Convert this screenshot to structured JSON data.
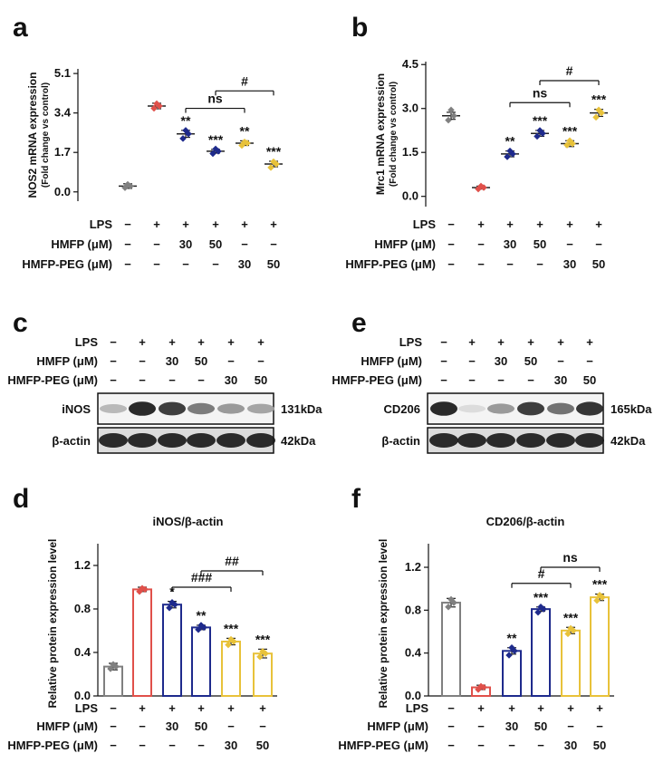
{
  "panels": {
    "a": "a",
    "b": "b",
    "c": "c",
    "d": "d",
    "e": "e",
    "f": "f"
  },
  "conditions": {
    "labels": [
      "LPS",
      "HMFP (μM)",
      "HMFP-PEG (μM)"
    ],
    "rows": [
      [
        "−",
        "+",
        "+",
        "+",
        "+",
        "+"
      ],
      [
        "−",
        "−",
        "30",
        "50",
        "−",
        "−"
      ],
      [
        "−",
        "−",
        "−",
        "−",
        "30",
        "50"
      ]
    ]
  },
  "colors": {
    "control": "#808080",
    "lps": "#e0504a",
    "hmfp": "#1e2a8c",
    "peg": "#e8c23a"
  },
  "blots": {
    "c": {
      "target": "iNOS",
      "target_kda": "131kDa",
      "loading": "β-actin",
      "loading_kda": "42kDa",
      "target_intensity": [
        0.25,
        0.95,
        0.85,
        0.55,
        0.4,
        0.35
      ]
    },
    "e": {
      "target": "CD206",
      "target_kda": "165kDa",
      "loading": "β-actin",
      "loading_kda": "42kDa",
      "target_intensity": [
        0.95,
        0.08,
        0.4,
        0.85,
        0.6,
        0.9
      ]
    }
  },
  "chart_data": [
    {
      "id": "a",
      "type": "scatter",
      "title": "",
      "ylabel": "NOS2 mRNA expression",
      "ylabel_sub": "(Fold change vs control)",
      "ylim": [
        -0.4,
        5.3
      ],
      "yticks": [
        0.0,
        1.7,
        3.4,
        5.1
      ],
      "ytick_labels": [
        "0.0",
        "1.7",
        "3.4",
        "5.1"
      ],
      "means": [
        0.25,
        3.7,
        2.5,
        1.75,
        2.1,
        1.2
      ],
      "errors": [
        0.1,
        0.12,
        0.15,
        0.08,
        0.1,
        0.12
      ],
      "points": [
        [
          0.18,
          0.25,
          0.32
        ],
        [
          3.6,
          3.7,
          3.8
        ],
        [
          2.3,
          2.5,
          2.65
        ],
        [
          1.65,
          1.75,
          1.85
        ],
        [
          2.0,
          2.1,
          2.15
        ],
        [
          1.05,
          1.2,
          1.3
        ]
      ],
      "significance": [
        "",
        "",
        "**",
        "***",
        "**",
        "***"
      ],
      "brackets": [
        {
          "from": 2,
          "to": 4,
          "y": 3.6,
          "label": "ns"
        },
        {
          "from": 3,
          "to": 5,
          "y": 4.35,
          "label": "#"
        }
      ]
    },
    {
      "id": "b",
      "type": "scatter",
      "title": "",
      "ylabel": "Mrc1 mRNA expression",
      "ylabel_sub": "(Fold change vs control)",
      "ylim": [
        -0.35,
        4.6
      ],
      "yticks": [
        0.0,
        1.5,
        3.0,
        4.5
      ],
      "ytick_labels": [
        "0.0",
        "1.5",
        "3.0",
        "4.5"
      ],
      "means": [
        2.75,
        0.3,
        1.45,
        2.15,
        1.8,
        2.85
      ],
      "errors": [
        0.12,
        0.05,
        0.1,
        0.1,
        0.1,
        0.12
      ],
      "points": [
        [
          2.6,
          2.75,
          2.95
        ],
        [
          0.25,
          0.3,
          0.35
        ],
        [
          1.35,
          1.45,
          1.55
        ],
        [
          2.05,
          2.15,
          2.25
        ],
        [
          1.75,
          1.8,
          1.9
        ],
        [
          2.7,
          2.85,
          2.95
        ]
      ],
      "significance": [
        "",
        "",
        "**",
        "***",
        "***",
        "***"
      ],
      "brackets": [
        {
          "from": 2,
          "to": 4,
          "y": 3.2,
          "label": "ns"
        },
        {
          "from": 3,
          "to": 5,
          "y": 3.95,
          "label": "#"
        }
      ]
    },
    {
      "id": "d",
      "type": "bar",
      "title": "iNOS/β-actin",
      "ylabel": "Relative protein expression level",
      "ylim": [
        0,
        1.4
      ],
      "yticks": [
        0.0,
        0.4,
        0.8,
        1.2
      ],
      "ytick_labels": [
        "0.0",
        "0.4",
        "0.8",
        "1.2"
      ],
      "values": [
        0.27,
        0.98,
        0.84,
        0.63,
        0.5,
        0.39
      ],
      "errors": [
        0.03,
        0.02,
        0.03,
        0.02,
        0.03,
        0.04
      ],
      "points": [
        [
          0.25,
          0.27,
          0.29
        ],
        [
          0.96,
          0.98,
          0.99
        ],
        [
          0.81,
          0.84,
          0.86
        ],
        [
          0.61,
          0.63,
          0.65
        ],
        [
          0.47,
          0.5,
          0.52
        ],
        [
          0.36,
          0.39,
          0.41
        ]
      ],
      "significance": [
        "",
        "",
        "*",
        "**",
        "***",
        "***"
      ],
      "brackets": [
        {
          "from": 2,
          "to": 4,
          "y": 1.0,
          "label": "###"
        },
        {
          "from": 3,
          "to": 5,
          "y": 1.15,
          "label": "##"
        }
      ]
    },
    {
      "id": "f",
      "type": "bar",
      "title": "CD206/β-actin",
      "ylabel": "Relative protein expression level",
      "ylim": [
        0,
        1.42
      ],
      "yticks": [
        0.0,
        0.4,
        0.8,
        1.2
      ],
      "ytick_labels": [
        "0.0",
        "0.4",
        "0.8",
        "1.2"
      ],
      "values": [
        0.87,
        0.08,
        0.42,
        0.81,
        0.61,
        0.92
      ],
      "errors": [
        0.04,
        0.02,
        0.03,
        0.02,
        0.03,
        0.03
      ],
      "points": [
        [
          0.83,
          0.87,
          0.9
        ],
        [
          0.06,
          0.08,
          0.09
        ],
        [
          0.38,
          0.42,
          0.45
        ],
        [
          0.78,
          0.81,
          0.83
        ],
        [
          0.58,
          0.61,
          0.63
        ],
        [
          0.89,
          0.92,
          0.94
        ]
      ],
      "significance": [
        "",
        "",
        "**",
        "***",
        "***",
        "***"
      ],
      "brackets": [
        {
          "from": 2,
          "to": 4,
          "y": 1.05,
          "label": "#"
        },
        {
          "from": 3,
          "to": 5,
          "y": 1.2,
          "label": "ns"
        }
      ]
    }
  ]
}
